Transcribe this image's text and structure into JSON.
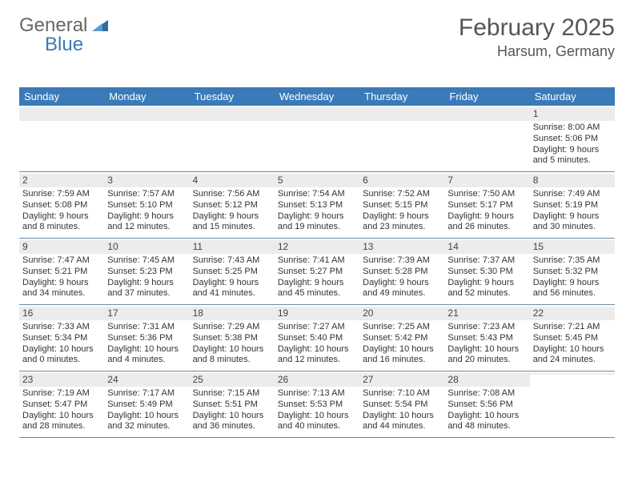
{
  "logo": {
    "text1": "General",
    "text2": "Blue"
  },
  "title": {
    "month": "February 2025",
    "location": "Harsum, Germany"
  },
  "colors": {
    "header_bg": "#3a7ab8",
    "header_text": "#ffffff",
    "numbar_bg": "#ececec",
    "rule": "#6b8aa8",
    "body_text": "#333333",
    "title_text": "#555555"
  },
  "fonts": {
    "title_size_pt": 22,
    "location_size_pt": 14,
    "dow_size_pt": 10,
    "cell_size_pt": 8
  },
  "dow": [
    "Sunday",
    "Monday",
    "Tuesday",
    "Wednesday",
    "Thursday",
    "Friday",
    "Saturday"
  ],
  "weeks": [
    [
      {
        "n": "",
        "sr": "",
        "ss": "",
        "dl": ""
      },
      {
        "n": "",
        "sr": "",
        "ss": "",
        "dl": ""
      },
      {
        "n": "",
        "sr": "",
        "ss": "",
        "dl": ""
      },
      {
        "n": "",
        "sr": "",
        "ss": "",
        "dl": ""
      },
      {
        "n": "",
        "sr": "",
        "ss": "",
        "dl": ""
      },
      {
        "n": "",
        "sr": "",
        "ss": "",
        "dl": ""
      },
      {
        "n": "1",
        "sr": "Sunrise: 8:00 AM",
        "ss": "Sunset: 5:06 PM",
        "dl": "Daylight: 9 hours and 5 minutes."
      }
    ],
    [
      {
        "n": "2",
        "sr": "Sunrise: 7:59 AM",
        "ss": "Sunset: 5:08 PM",
        "dl": "Daylight: 9 hours and 8 minutes."
      },
      {
        "n": "3",
        "sr": "Sunrise: 7:57 AM",
        "ss": "Sunset: 5:10 PM",
        "dl": "Daylight: 9 hours and 12 minutes."
      },
      {
        "n": "4",
        "sr": "Sunrise: 7:56 AM",
        "ss": "Sunset: 5:12 PM",
        "dl": "Daylight: 9 hours and 15 minutes."
      },
      {
        "n": "5",
        "sr": "Sunrise: 7:54 AM",
        "ss": "Sunset: 5:13 PM",
        "dl": "Daylight: 9 hours and 19 minutes."
      },
      {
        "n": "6",
        "sr": "Sunrise: 7:52 AM",
        "ss": "Sunset: 5:15 PM",
        "dl": "Daylight: 9 hours and 23 minutes."
      },
      {
        "n": "7",
        "sr": "Sunrise: 7:50 AM",
        "ss": "Sunset: 5:17 PM",
        "dl": "Daylight: 9 hours and 26 minutes."
      },
      {
        "n": "8",
        "sr": "Sunrise: 7:49 AM",
        "ss": "Sunset: 5:19 PM",
        "dl": "Daylight: 9 hours and 30 minutes."
      }
    ],
    [
      {
        "n": "9",
        "sr": "Sunrise: 7:47 AM",
        "ss": "Sunset: 5:21 PM",
        "dl": "Daylight: 9 hours and 34 minutes."
      },
      {
        "n": "10",
        "sr": "Sunrise: 7:45 AM",
        "ss": "Sunset: 5:23 PM",
        "dl": "Daylight: 9 hours and 37 minutes."
      },
      {
        "n": "11",
        "sr": "Sunrise: 7:43 AM",
        "ss": "Sunset: 5:25 PM",
        "dl": "Daylight: 9 hours and 41 minutes."
      },
      {
        "n": "12",
        "sr": "Sunrise: 7:41 AM",
        "ss": "Sunset: 5:27 PM",
        "dl": "Daylight: 9 hours and 45 minutes."
      },
      {
        "n": "13",
        "sr": "Sunrise: 7:39 AM",
        "ss": "Sunset: 5:28 PM",
        "dl": "Daylight: 9 hours and 49 minutes."
      },
      {
        "n": "14",
        "sr": "Sunrise: 7:37 AM",
        "ss": "Sunset: 5:30 PM",
        "dl": "Daylight: 9 hours and 52 minutes."
      },
      {
        "n": "15",
        "sr": "Sunrise: 7:35 AM",
        "ss": "Sunset: 5:32 PM",
        "dl": "Daylight: 9 hours and 56 minutes."
      }
    ],
    [
      {
        "n": "16",
        "sr": "Sunrise: 7:33 AM",
        "ss": "Sunset: 5:34 PM",
        "dl": "Daylight: 10 hours and 0 minutes."
      },
      {
        "n": "17",
        "sr": "Sunrise: 7:31 AM",
        "ss": "Sunset: 5:36 PM",
        "dl": "Daylight: 10 hours and 4 minutes."
      },
      {
        "n": "18",
        "sr": "Sunrise: 7:29 AM",
        "ss": "Sunset: 5:38 PM",
        "dl": "Daylight: 10 hours and 8 minutes."
      },
      {
        "n": "19",
        "sr": "Sunrise: 7:27 AM",
        "ss": "Sunset: 5:40 PM",
        "dl": "Daylight: 10 hours and 12 minutes."
      },
      {
        "n": "20",
        "sr": "Sunrise: 7:25 AM",
        "ss": "Sunset: 5:42 PM",
        "dl": "Daylight: 10 hours and 16 minutes."
      },
      {
        "n": "21",
        "sr": "Sunrise: 7:23 AM",
        "ss": "Sunset: 5:43 PM",
        "dl": "Daylight: 10 hours and 20 minutes."
      },
      {
        "n": "22",
        "sr": "Sunrise: 7:21 AM",
        "ss": "Sunset: 5:45 PM",
        "dl": "Daylight: 10 hours and 24 minutes."
      }
    ],
    [
      {
        "n": "23",
        "sr": "Sunrise: 7:19 AM",
        "ss": "Sunset: 5:47 PM",
        "dl": "Daylight: 10 hours and 28 minutes."
      },
      {
        "n": "24",
        "sr": "Sunrise: 7:17 AM",
        "ss": "Sunset: 5:49 PM",
        "dl": "Daylight: 10 hours and 32 minutes."
      },
      {
        "n": "25",
        "sr": "Sunrise: 7:15 AM",
        "ss": "Sunset: 5:51 PM",
        "dl": "Daylight: 10 hours and 36 minutes."
      },
      {
        "n": "26",
        "sr": "Sunrise: 7:13 AM",
        "ss": "Sunset: 5:53 PM",
        "dl": "Daylight: 10 hours and 40 minutes."
      },
      {
        "n": "27",
        "sr": "Sunrise: 7:10 AM",
        "ss": "Sunset: 5:54 PM",
        "dl": "Daylight: 10 hours and 44 minutes."
      },
      {
        "n": "28",
        "sr": "Sunrise: 7:08 AM",
        "ss": "Sunset: 5:56 PM",
        "dl": "Daylight: 10 hours and 48 minutes."
      },
      {
        "n": "",
        "sr": "",
        "ss": "",
        "dl": ""
      }
    ]
  ]
}
